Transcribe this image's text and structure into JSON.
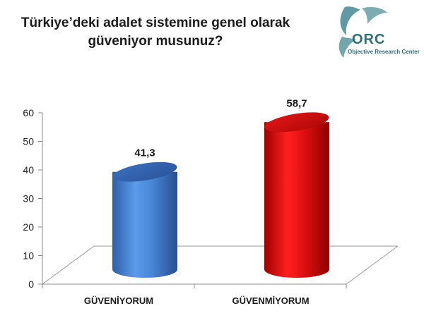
{
  "title_lines": [
    "Türkiye’deki adalet sistemine genel olarak",
    "güveniyor musunuz?"
  ],
  "logo": {
    "mark": "ORC",
    "text": "Objective Research Center",
    "color": "#4f8f9a"
  },
  "colors": {
    "blue": "#4a86d8",
    "red": "#e01010"
  },
  "chart_data": {
    "type": "bar",
    "title": "Türkiye’deki adalet sistemine genel olarak güveniyor musunuz?",
    "categories": [
      "GÜVENİYORUM",
      "GÜVENMİYORUM"
    ],
    "values": [
      41.3,
      58.7
    ],
    "data_labels": [
      "41,3",
      "58,7"
    ],
    "yticks": [
      "0",
      "10",
      "20",
      "30",
      "40",
      "50",
      "60"
    ],
    "ylim": [
      0,
      60
    ],
    "xlabel": "",
    "ylabel": "",
    "grid": false,
    "legend": "none",
    "style": "3d-cylinder"
  }
}
